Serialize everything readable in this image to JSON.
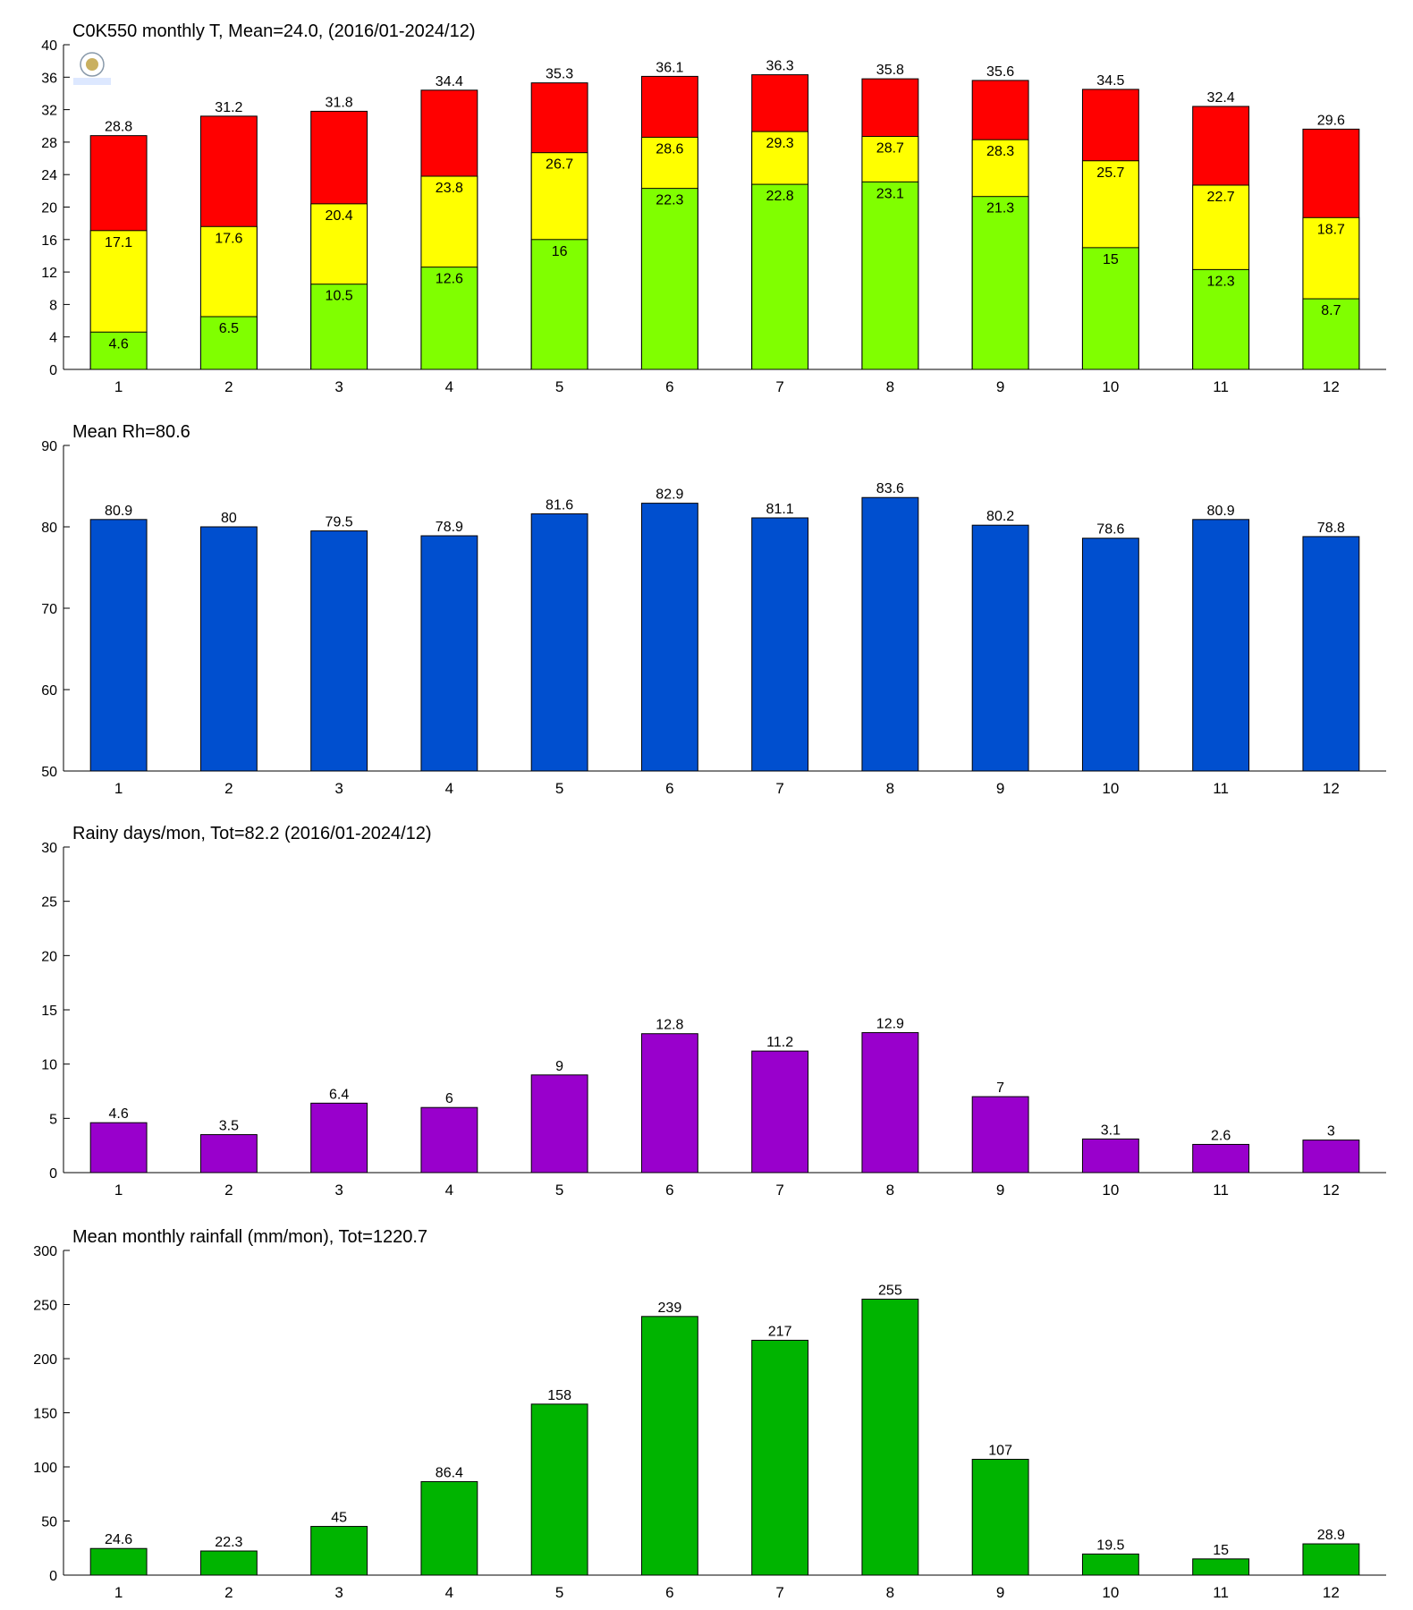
{
  "chart_data": [
    {
      "type": "bar",
      "title": "C0K550 monthly T, Mean=24.0, (2016/01-2024/12)",
      "categories": [
        "1",
        "2",
        "3",
        "4",
        "5",
        "6",
        "7",
        "8",
        "9",
        "10",
        "11",
        "12"
      ],
      "series": [
        {
          "color": "#ff0000",
          "values": [
            28.8,
            31.2,
            31.8,
            34.4,
            35.3,
            36.1,
            36.3,
            35.8,
            35.6,
            34.5,
            32.4,
            29.6
          ]
        },
        {
          "color": "#ffff00",
          "values": [
            17.1,
            17.6,
            20.4,
            23.8,
            26.7,
            28.6,
            29.3,
            28.7,
            28.3,
            25.7,
            22.7,
            18.7
          ]
        },
        {
          "color": "#80ff00",
          "values": [
            4.6,
            6.5,
            10.5,
            12.6,
            16,
            22.3,
            22.8,
            23.1,
            21.3,
            15,
            12.3,
            8.7
          ]
        }
      ],
      "ylim": [
        0,
        40
      ],
      "yticks": [
        0,
        4,
        8,
        12,
        16,
        20,
        24,
        28,
        32,
        36,
        40
      ]
    },
    {
      "type": "bar",
      "title": "Mean Rh=80.6",
      "categories": [
        "1",
        "2",
        "3",
        "4",
        "5",
        "6",
        "7",
        "8",
        "9",
        "10",
        "11",
        "12"
      ],
      "series": [
        {
          "color": "#004fcf",
          "values": [
            80.9,
            80,
            79.5,
            78.9,
            81.6,
            82.9,
            81.1,
            83.6,
            80.2,
            78.6,
            80.9,
            78.8
          ]
        }
      ],
      "ylim": [
        50,
        90
      ],
      "yticks": [
        50,
        60,
        70,
        80,
        90
      ]
    },
    {
      "type": "bar",
      "title": "Rainy days/mon, Tot=82.2 (2016/01-2024/12)",
      "categories": [
        "1",
        "2",
        "3",
        "4",
        "5",
        "6",
        "7",
        "8",
        "9",
        "10",
        "11",
        "12"
      ],
      "series": [
        {
          "color": "#9900cc",
          "values": [
            4.6,
            3.5,
            6.4,
            6,
            9,
            12.8,
            11.2,
            12.9,
            7,
            3.1,
            2.6,
            3
          ]
        }
      ],
      "ylim": [
        0,
        30
      ],
      "yticks": [
        0,
        5,
        10,
        15,
        20,
        25,
        30
      ]
    },
    {
      "type": "bar",
      "title": "Mean monthly rainfall (mm/mon), Tot=1220.7",
      "categories": [
        "1",
        "2",
        "3",
        "4",
        "5",
        "6",
        "7",
        "8",
        "9",
        "10",
        "11",
        "12"
      ],
      "series": [
        {
          "color": "#00b400",
          "values": [
            24.6,
            22.3,
            45,
            86.4,
            158,
            239,
            217,
            255,
            107,
            19.5,
            15,
            28.9
          ]
        }
      ],
      "ylim": [
        0,
        300
      ],
      "yticks": [
        0,
        50,
        100,
        150,
        200,
        250,
        300
      ]
    }
  ]
}
